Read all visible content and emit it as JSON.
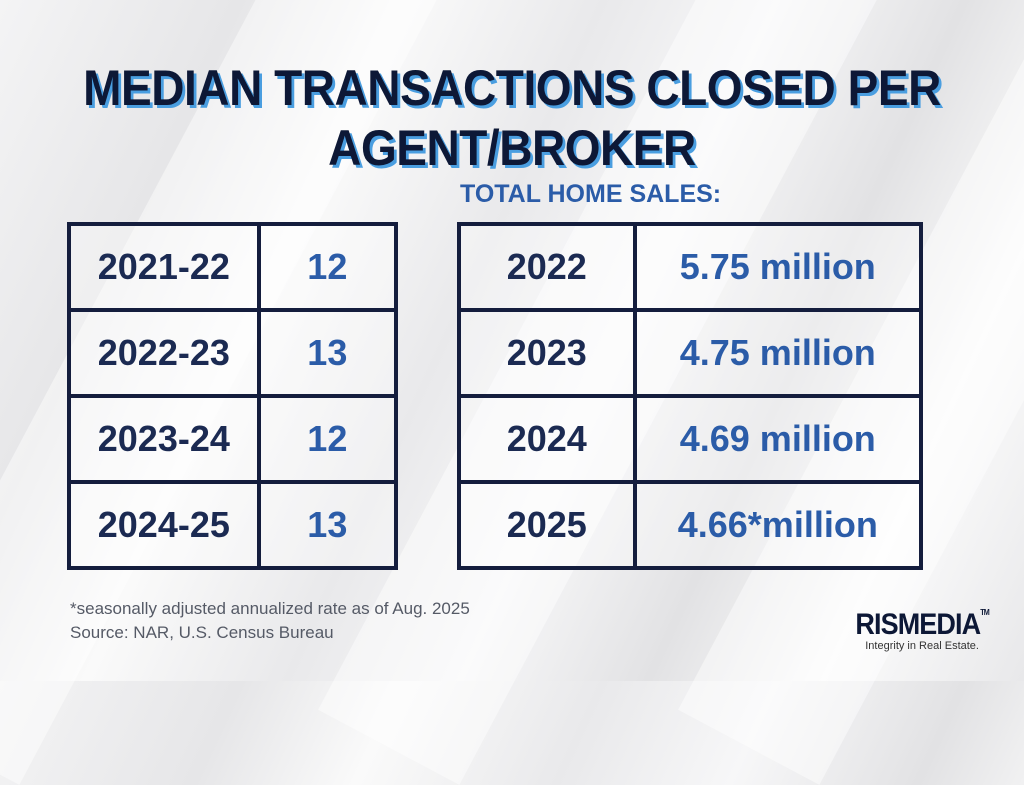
{
  "chart_data": [
    {
      "type": "table",
      "title": "MEDIAN TRANSACTIONS CLOSED PER AGENT/BROKER",
      "rows": [
        {
          "period": "2021-22",
          "value": "12"
        },
        {
          "period": "2022-23",
          "value": "13"
        },
        {
          "period": "2023-24",
          "value": "12"
        },
        {
          "period": "2024-25",
          "value": "13"
        }
      ]
    },
    {
      "type": "table",
      "title": "TOTAL HOME SALES:",
      "rows": [
        {
          "period": "2022",
          "value": "5.75 million"
        },
        {
          "period": "2023",
          "value": "4.75 million"
        },
        {
          "period": "2024",
          "value": "4.69 million"
        },
        {
          "period": "2025",
          "value": "4.66*million"
        }
      ]
    }
  ],
  "title_line1": "MEDIAN TRANSACTIONS CLOSED PER",
  "title_line2": "AGENT/BROKER",
  "footnote": "*seasonally adjusted annualized rate as of Aug. 2025",
  "source": "Source: NAR, U.S. Census Bureau",
  "logo": {
    "name": "RISMEDIA",
    "trademark": "TM",
    "tagline": "Integrity in Real Estate."
  },
  "colors": {
    "navy": "#0d1836",
    "blue": "#2b5ca8",
    "shadow": "#4a9ee0"
  }
}
